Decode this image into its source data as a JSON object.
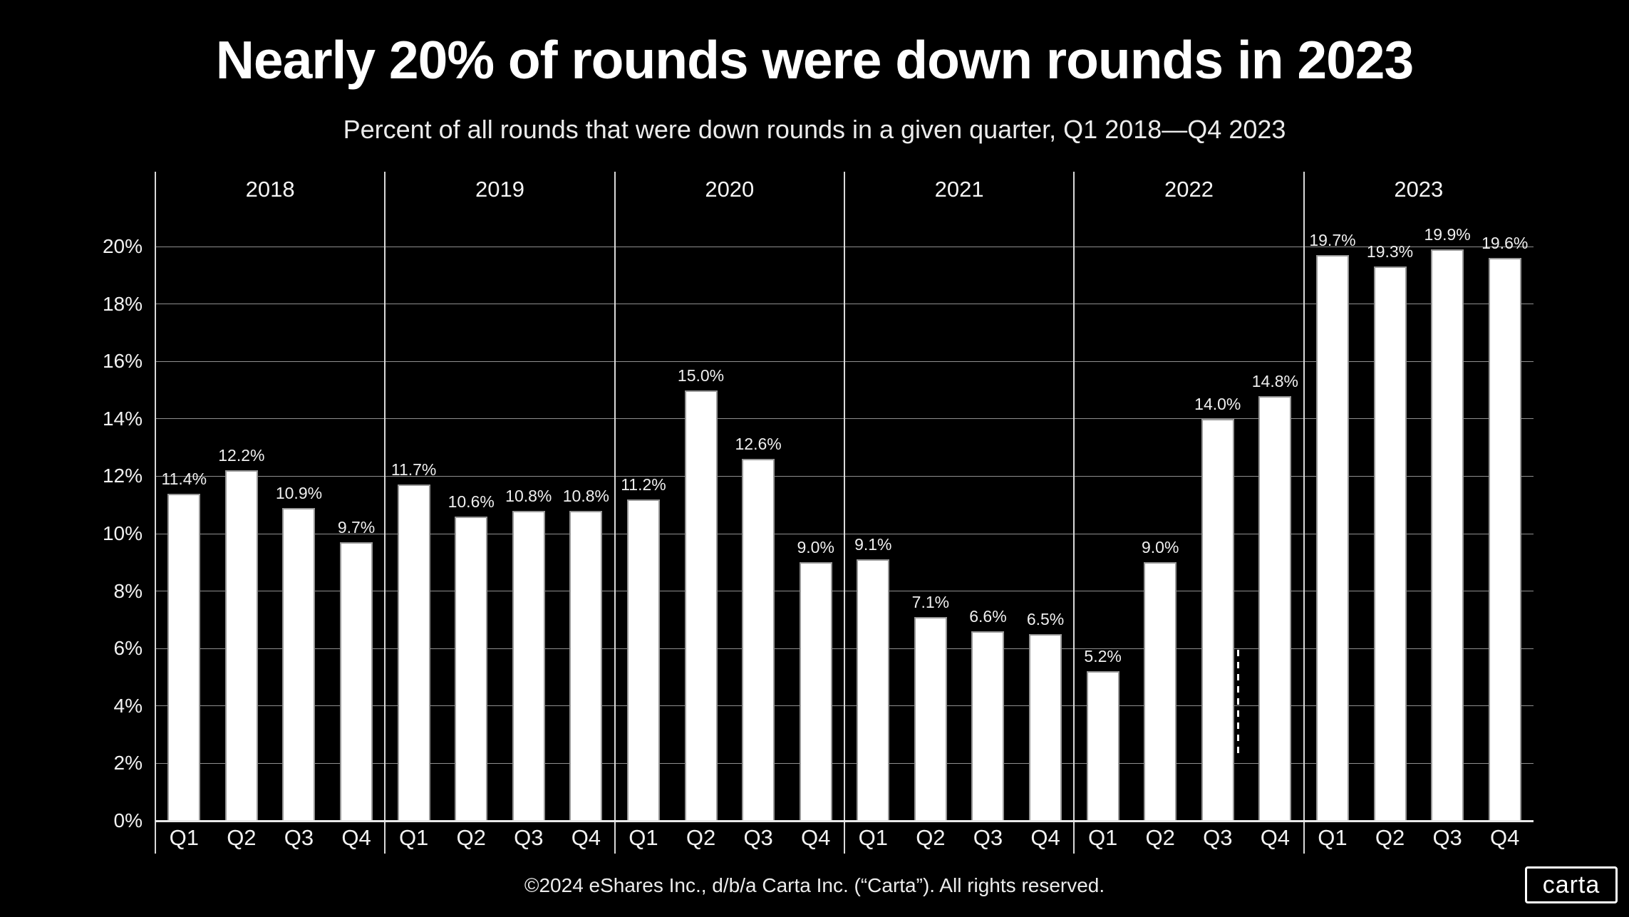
{
  "title": "Nearly 20% of rounds were down rounds in 2023",
  "subtitle": "Percent of all rounds that were down rounds in a given quarter, Q1 2018—Q4 2023",
  "footer": "©2024 eShares Inc., d/b/a Carta Inc. (“Carta”). All rights reserved.",
  "logo": {
    "text": "carta"
  },
  "colors": {
    "background": "#000000",
    "bar": "#ffffff",
    "bar_edge": "#989898",
    "grid": "#8f8f8f",
    "axis": "#e8e8e8",
    "text": "#ffffff"
  },
  "chart_data": {
    "type": "bar",
    "title": "Nearly 20% of rounds were down rounds in 2023",
    "subtitle": "Percent of all rounds that were down rounds in a given quarter, Q1 2018—Q4 2023",
    "grid": "horizontal",
    "legend": "none",
    "ylim": [
      0,
      20
    ],
    "ytick_step": 2,
    "ytick_labels": [
      "0%",
      "2%",
      "4%",
      "6%",
      "8%",
      "10%",
      "12%",
      "14%",
      "16%",
      "18%",
      "20%"
    ],
    "quarters": [
      "Q1",
      "Q2",
      "Q3",
      "Q4"
    ],
    "groups": [
      {
        "year": "2018",
        "values": [
          11.4,
          12.2,
          10.9,
          9.7
        ],
        "labels": [
          "11.4%",
          "12.2%",
          "10.9%",
          "9.7%"
        ]
      },
      {
        "year": "2019",
        "values": [
          11.7,
          10.6,
          10.8,
          10.8
        ],
        "labels": [
          "11.7%",
          "10.6%",
          "10.8%",
          "10.8%"
        ]
      },
      {
        "year": "2020",
        "values": [
          11.2,
          15.0,
          12.6,
          9.0
        ],
        "labels": [
          "11.2%",
          "15.0%",
          "12.6%",
          "9.0%"
        ]
      },
      {
        "year": "2021",
        "values": [
          9.1,
          7.1,
          6.6,
          6.5
        ],
        "labels": [
          "9.1%",
          "7.1%",
          "6.6%",
          "6.5%"
        ]
      },
      {
        "year": "2022",
        "values": [
          5.2,
          9.0,
          14.0,
          14.8
        ],
        "labels": [
          "5.2%",
          "9.0%",
          "14.0%",
          "14.8%"
        ]
      },
      {
        "year": "2023",
        "values": [
          19.7,
          19.3,
          19.9,
          19.6
        ],
        "labels": [
          "19.7%",
          "19.3%",
          "19.9%",
          "19.6%"
        ]
      }
    ],
    "annotations": [
      {
        "type": "dashed-vertical-line",
        "location": "right edge of 2022 Q3 bar",
        "pct_bottom": 2.2,
        "pct_top": 5.95
      }
    ]
  }
}
